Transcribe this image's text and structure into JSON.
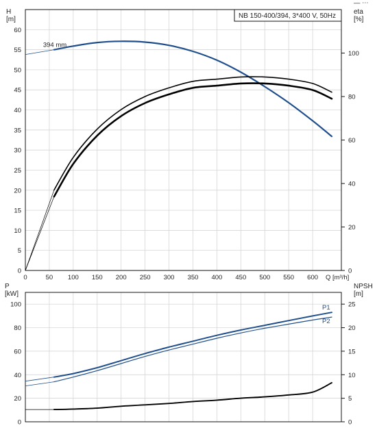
{
  "window_corner_glyph": "— ⋯",
  "chart_data": [
    {
      "type": "line",
      "panel": "head-efficiency",
      "title": "NB 150-400/394, 3*400 V, 50Hz",
      "xlabel": "Q [m³/h]",
      "ylabel": "H\n[m]",
      "y2label": "eta\n[%]",
      "xlim": [
        0,
        660
      ],
      "ylim": [
        0,
        65
      ],
      "y2lim": [
        0,
        120
      ],
      "xticks": [
        0,
        50,
        100,
        150,
        200,
        250,
        300,
        350,
        400,
        450,
        500,
        550,
        600
      ],
      "yticks": [
        0,
        5,
        10,
        15,
        20,
        25,
        30,
        35,
        40,
        45,
        50,
        55,
        60
      ],
      "y2ticks": [
        0,
        20,
        40,
        60,
        80,
        100
      ],
      "grid": true,
      "series": [
        {
          "name": "394 mm",
          "axis": "left",
          "color": "#1f4e8c",
          "x": [
            60,
            100,
            150,
            200,
            250,
            300,
            350,
            400,
            450,
            500,
            550,
            600,
            640
          ],
          "y": [
            55.0,
            55.9,
            56.8,
            57.1,
            56.9,
            56.1,
            54.6,
            52.4,
            49.4,
            45.8,
            41.8,
            37.3,
            33.4
          ],
          "extension": {
            "x": [
              0,
              60
            ],
            "y": [
              53.8,
              55.0
            ]
          }
        },
        {
          "name": "",
          "axis": "right",
          "color": "#000000",
          "x": [
            60,
            100,
            150,
            200,
            250,
            300,
            350,
            400,
            450,
            500,
            550,
            600,
            640
          ],
          "y": [
            34,
            49,
            62,
            71,
            77,
            81,
            84,
            85,
            86,
            86,
            85,
            83,
            79
          ]
        },
        {
          "name": "",
          "axis": "right",
          "color": "#000000",
          "x": [
            60,
            100,
            150,
            200,
            250,
            300,
            350,
            400,
            450,
            500,
            550,
            600,
            640
          ],
          "y": [
            37,
            52,
            65,
            74,
            80,
            84,
            87,
            88,
            89,
            89,
            88,
            86,
            82
          ]
        }
      ]
    },
    {
      "type": "line",
      "panel": "power-npsh",
      "ylabel": "P\n[kW]",
      "y2label": "NPSH\n[m]",
      "xlim": [
        0,
        660
      ],
      "ylim": [
        0,
        110
      ],
      "y2lim": [
        0,
        27.5
      ],
      "yticks": [
        0,
        20,
        40,
        60,
        80,
        100
      ],
      "y2ticks": [
        0,
        5,
        10,
        15,
        20,
        25
      ],
      "grid": true,
      "series": [
        {
          "name": "P1",
          "axis": "left",
          "color": "#1f4e8c",
          "x": [
            60,
            100,
            150,
            200,
            250,
            300,
            350,
            400,
            450,
            500,
            550,
            600,
            640
          ],
          "y": [
            38,
            41,
            46,
            52,
            58,
            63.5,
            68.5,
            73.5,
            78,
            82,
            86,
            90,
            93
          ],
          "extension": {
            "x": [
              0,
              60
            ],
            "y": [
              34.5,
              38
            ]
          }
        },
        {
          "name": "P2",
          "axis": "left",
          "color": "#1f4e8c",
          "x": [
            60,
            100,
            150,
            200,
            250,
            300,
            350,
            400,
            450,
            500,
            550,
            600,
            640
          ],
          "y": [
            34,
            38,
            43.5,
            49.5,
            55.5,
            61,
            66,
            71,
            75.5,
            79.5,
            83,
            86.5,
            89
          ],
          "extension": {
            "x": [
              0,
              60
            ],
            "y": [
              30.5,
              34
            ]
          }
        },
        {
          "name": "",
          "axis": "right",
          "color": "#000000",
          "x": [
            60,
            100,
            150,
            200,
            250,
            300,
            350,
            400,
            450,
            500,
            550,
            600,
            640
          ],
          "y": [
            2.6,
            2.7,
            2.9,
            3.3,
            3.6,
            3.9,
            4.3,
            4.6,
            5.0,
            5.3,
            5.7,
            6.3,
            8.3
          ],
          "extension": {
            "x": [
              0,
              60
            ],
            "y": [
              2.6,
              2.6
            ]
          }
        }
      ]
    }
  ]
}
